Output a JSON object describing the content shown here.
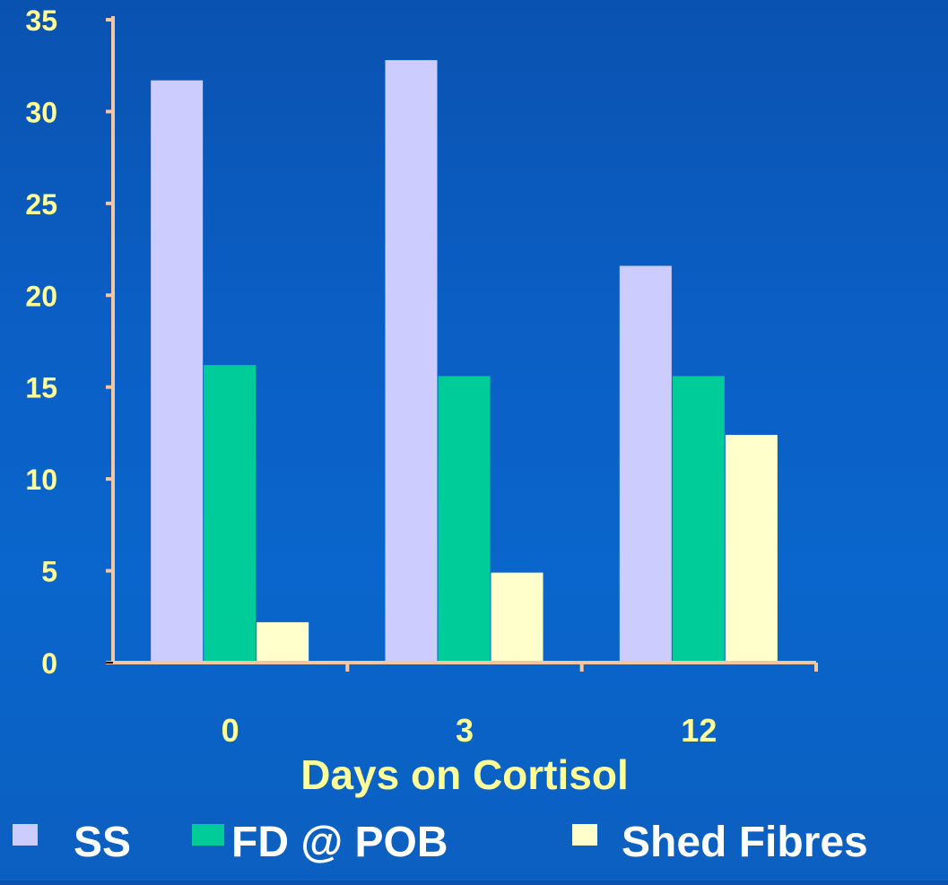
{
  "chart_data": {
    "type": "bar",
    "xlabel": "Days on Cortisol",
    "ylabel": "",
    "categories": [
      "0",
      "3",
      "12"
    ],
    "ylim": [
      0,
      35
    ],
    "yticks": [
      0,
      5,
      10,
      15,
      20,
      25,
      30,
      35
    ],
    "grid": false,
    "legend_position": "bottom",
    "series": [
      {
        "name": "SS",
        "values": [
          31.7,
          32.8,
          21.6
        ],
        "color": "#ccccff"
      },
      {
        "name": "FD @ POB",
        "values": [
          16.2,
          15.6,
          15.6
        ],
        "color": "#00cc99"
      },
      {
        "name": "Shed Fibres",
        "values": [
          2.2,
          4.9,
          12.4
        ],
        "color": "#ffffcc"
      }
    ]
  },
  "colors": {
    "background": "#0b5ec4",
    "axis": "#f5c6a0",
    "text": "#ffff99",
    "legend_text": "#ffffff"
  }
}
